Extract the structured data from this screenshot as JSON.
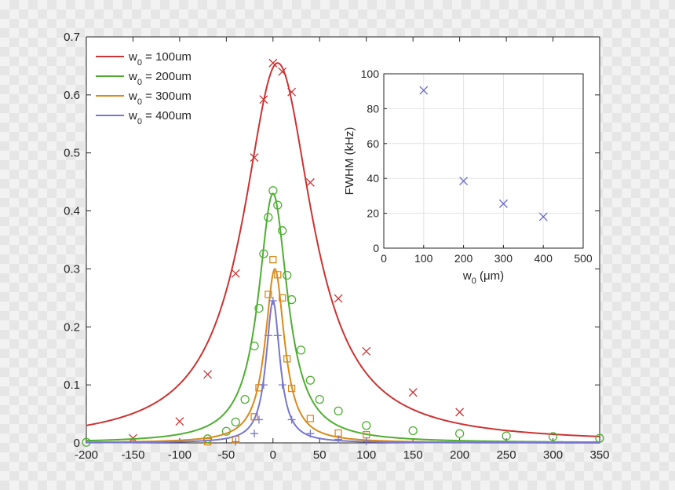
{
  "chart_data": [
    {
      "type": "line",
      "title": "",
      "xlabel": "",
      "ylabel": "",
      "xlim": [
        -200,
        350
      ],
      "ylim": [
        0,
        0.7
      ],
      "xticks": [
        -200,
        -150,
        -100,
        -50,
        0,
        50,
        100,
        150,
        200,
        250,
        300,
        350
      ],
      "yticks": [
        0,
        0.1,
        0.2,
        0.3,
        0.4,
        0.5,
        0.6,
        0.7
      ],
      "legend_position": "top-left",
      "grid": false,
      "series": [
        {
          "name": "w0 = 100um",
          "legend_base": "w",
          "legend_sub": "0",
          "legend_rest": " = 100um",
          "color": "#cc3333",
          "marker": "x",
          "peak": 0.655,
          "center": 5,
          "hwhm": 45,
          "points": [
            [
              -150,
              0.008
            ],
            [
              -100,
              0.037
            ],
            [
              -70,
              0.118
            ],
            [
              -40,
              0.292
            ],
            [
              -20,
              0.492
            ],
            [
              -10,
              0.592
            ],
            [
              0,
              0.655
            ],
            [
              10,
              0.64
            ],
            [
              20,
              0.605
            ],
            [
              40,
              0.449
            ],
            [
              70,
              0.249
            ],
            [
              100,
              0.158
            ],
            [
              150,
              0.087
            ],
            [
              200,
              0.053
            ]
          ]
        },
        {
          "name": "w0 = 200um",
          "legend_base": "w",
          "legend_sub": "0",
          "legend_rest": " = 200um",
          "color": "#4fae32",
          "marker": "o",
          "peak": 0.43,
          "center": 0,
          "hwhm": 19,
          "points": [
            [
              -200,
              0.001
            ],
            [
              -70,
              0.007
            ],
            [
              -50,
              0.02
            ],
            [
              -40,
              0.036
            ],
            [
              -30,
              0.075
            ],
            [
              -20,
              0.167
            ],
            [
              -15,
              0.232
            ],
            [
              -10,
              0.326
            ],
            [
              -5,
              0.389
            ],
            [
              0,
              0.435
            ],
            [
              5,
              0.41
            ],
            [
              10,
              0.366
            ],
            [
              15,
              0.289
            ],
            [
              20,
              0.247
            ],
            [
              30,
              0.16
            ],
            [
              40,
              0.108
            ],
            [
              50,
              0.075
            ],
            [
              70,
              0.055
            ],
            [
              100,
              0.03
            ],
            [
              150,
              0.021
            ],
            [
              200,
              0.016
            ],
            [
              250,
              0.012
            ],
            [
              300,
              0.011
            ],
            [
              350,
              0.008
            ]
          ]
        },
        {
          "name": "w0 = 300um",
          "legend_base": "w",
          "legend_sub": "0",
          "legend_rest": " = 300um",
          "color": "#d98a1a",
          "marker": "s",
          "peak": 0.3,
          "center": 2,
          "hwhm": 12.5,
          "points": [
            [
              -70,
              0.002
            ],
            [
              -40,
              0.006
            ],
            [
              -20,
              0.045
            ],
            [
              -15,
              0.095
            ],
            [
              -5,
              0.256
            ],
            [
              0,
              0.316
            ],
            [
              5,
              0.29
            ],
            [
              10,
              0.25
            ],
            [
              15,
              0.145
            ],
            [
              20,
              0.094
            ],
            [
              40,
              0.042
            ],
            [
              70,
              0.017
            ],
            [
              100,
              0.014
            ]
          ]
        },
        {
          "name": "w0 = 400um",
          "legend_base": "w",
          "legend_sub": "0",
          "legend_rest": " = 400um",
          "color": "#7777cc",
          "marker": "+",
          "peak": 0.245,
          "center": 0,
          "hwhm": 9,
          "points": [
            [
              -40,
              0.002
            ],
            [
              -20,
              0.016
            ],
            [
              -15,
              0.04
            ],
            [
              -10,
              0.1
            ],
            [
              -5,
              0.185
            ],
            [
              0,
              0.245
            ],
            [
              5,
              0.185
            ],
            [
              10,
              0.1
            ],
            [
              20,
              0.04
            ],
            [
              40,
              0.016
            ],
            [
              70,
              0.006
            ],
            [
              100,
              0.003
            ]
          ]
        }
      ]
    },
    {
      "type": "scatter",
      "title": "",
      "xlabel_base": "w",
      "xlabel_sub": "0",
      "xlabel_rest": " (μm)",
      "ylabel": "FWHM (kHz)",
      "xlim": [
        0,
        500
      ],
      "ylim": [
        0,
        100
      ],
      "xticks": [
        0,
        100,
        200,
        300,
        400,
        500
      ],
      "yticks": [
        0,
        20,
        40,
        60,
        80,
        100
      ],
      "grid": true,
      "color": "#6666cc",
      "marker": "x",
      "x": [
        100,
        200,
        300,
        400
      ],
      "y": [
        90.5,
        38.5,
        25.5,
        18
      ]
    }
  ]
}
